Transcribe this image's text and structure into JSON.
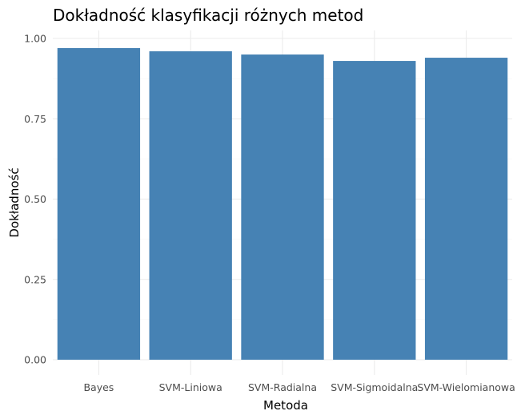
{
  "chart_data": {
    "type": "bar",
    "title": "Dokładność klasyfikacji różnych metod",
    "xlabel": "Metoda",
    "ylabel": "Dokładność",
    "categories": [
      "Bayes",
      "SVM-Liniowa",
      "SVM-Radialna",
      "SVM-Sigmoidalna",
      "SVM-Wielomianowa"
    ],
    "values": [
      0.97,
      0.96,
      0.95,
      0.93,
      0.94
    ],
    "ylim": [
      0,
      1
    ],
    "yticks": [
      "0.00",
      "0.25",
      "0.50",
      "0.75",
      "1.00"
    ],
    "bar_color": "#4682B4",
    "grid": true,
    "legend": "none"
  }
}
